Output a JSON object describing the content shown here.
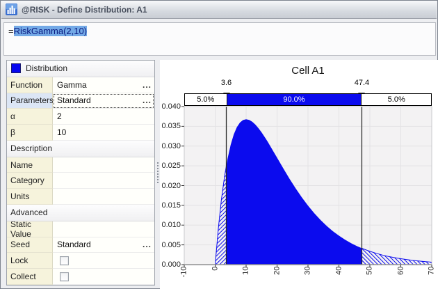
{
  "window": {
    "title": "@RISK - Define Distribution: A1",
    "icon": "histogram"
  },
  "formula": {
    "prefix": "=",
    "selected_text": "RiskGamma(2,10)"
  },
  "properties_panel": {
    "rows": [
      {
        "type": "header",
        "label": "Distribution",
        "swatch": true
      },
      {
        "type": "field",
        "label": "Function",
        "value": "Gamma",
        "ellipsis": true
      },
      {
        "type": "field",
        "label": "Parameters",
        "value": "Standard",
        "ellipsis": true,
        "selected": true
      },
      {
        "type": "field",
        "label": "α",
        "value": "2"
      },
      {
        "type": "field",
        "label": "β",
        "value": "10"
      },
      {
        "type": "header",
        "label": "Description"
      },
      {
        "type": "field",
        "label": "Name",
        "value": ""
      },
      {
        "type": "field",
        "label": "Category",
        "value": ""
      },
      {
        "type": "field",
        "label": "Units",
        "value": ""
      },
      {
        "type": "header",
        "label": "Advanced"
      },
      {
        "type": "field",
        "label": "Static Value",
        "value": ""
      },
      {
        "type": "field",
        "label": "Seed",
        "value": "Standard",
        "ellipsis": true
      },
      {
        "type": "checkbox",
        "label": "Lock",
        "checked": false
      },
      {
        "type": "checkbox",
        "label": "Collect",
        "checked": false
      }
    ]
  },
  "chart_data": {
    "type": "area",
    "title": "Cell A1",
    "distribution": "Gamma(2,10)",
    "x_range": [
      -10,
      70
    ],
    "y_range": [
      0,
      0.04
    ],
    "x_tick_labels": [
      "-10",
      "0",
      "10",
      "20",
      "30",
      "40",
      "50",
      "60",
      "70"
    ],
    "y_tick_labels": [
      "0.040",
      "0.035",
      "0.030",
      "0.025",
      "0.020",
      "0.015",
      "0.010",
      "0.005",
      "0.000"
    ],
    "grid": true,
    "fill_color": "#0b0bee",
    "plot_bg": "#f3f2f3",
    "grid_color": "#e3e2e4",
    "delimiters": {
      "left_x": 3.6,
      "right_x": 47.4,
      "left_label": "3.6",
      "right_label": "47.4",
      "left_pct": "5.0%",
      "mid_pct": "90.0%",
      "right_pct": "5.0%"
    },
    "curve": [
      [
        -10,
        0
      ],
      [
        -5,
        0
      ],
      [
        0,
        0
      ],
      [
        1,
        0.00905
      ],
      [
        2,
        0.01637
      ],
      [
        3,
        0.02222
      ],
      [
        4,
        0.02681
      ],
      [
        5,
        0.03033
      ],
      [
        6,
        0.03293
      ],
      [
        7,
        0.03476
      ],
      [
        8,
        0.03595
      ],
      [
        9,
        0.03659
      ],
      [
        10,
        0.03679
      ],
      [
        11,
        0.03662
      ],
      [
        12,
        0.03614
      ],
      [
        13,
        0.03543
      ],
      [
        14,
        0.03452
      ],
      [
        15,
        0.03347
      ],
      [
        16,
        0.0323
      ],
      [
        17,
        0.03106
      ],
      [
        18,
        0.02975
      ],
      [
        19,
        0.02842
      ],
      [
        20,
        0.02707
      ],
      [
        22,
        0.02438
      ],
      [
        24,
        0.02177
      ],
      [
        26,
        0.01931
      ],
      [
        28,
        0.01703
      ],
      [
        30,
        0.01494
      ],
      [
        32,
        0.01304
      ],
      [
        34,
        0.01134
      ],
      [
        36,
        0.00982
      ],
      [
        38,
        0.00848
      ],
      [
        40,
        0.00733
      ],
      [
        42,
        0.00629
      ],
      [
        44,
        0.00539
      ],
      [
        46,
        0.00462
      ],
      [
        48,
        0.00395
      ],
      [
        50,
        0.00337
      ],
      [
        52,
        0.00287
      ],
      [
        54,
        0.00244
      ],
      [
        56,
        0.00207
      ],
      [
        58,
        0.00176
      ],
      [
        60,
        0.00149
      ],
      [
        62,
        0.00126
      ],
      [
        64,
        0.00106
      ],
      [
        66,
        0.0009
      ],
      [
        68,
        0.00076
      ],
      [
        70,
        0.00064
      ]
    ]
  }
}
